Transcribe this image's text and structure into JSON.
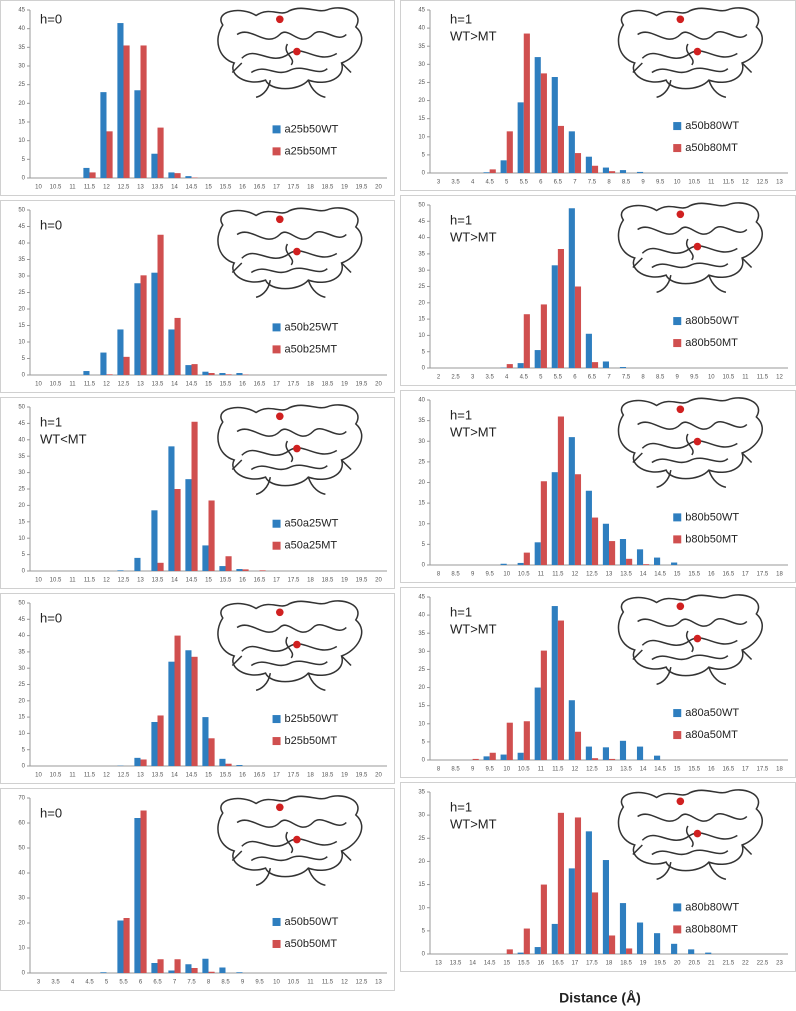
{
  "chart_data": [
    {
      "type": "bar",
      "annotations": [
        "h=0"
      ],
      "categories": [
        10,
        10.5,
        11,
        11.5,
        12,
        12.5,
        13,
        13.5,
        14,
        14.5,
        15,
        15.5,
        16,
        16.5,
        17,
        17.5,
        18,
        18.5,
        19,
        19.5,
        20
      ],
      "ylim": [
        0,
        45
      ],
      "yticks": [
        0,
        5,
        10,
        15,
        20,
        25,
        30,
        35,
        40,
        45
      ],
      "series": [
        {
          "name": "a25b50WT",
          "color": "#2e7ebf",
          "values": [
            0,
            0,
            0,
            2.7,
            23,
            41.5,
            23.5,
            6.5,
            1.5,
            0.5,
            0,
            0,
            0,
            0,
            0,
            0,
            0,
            0,
            0,
            0,
            0
          ]
        },
        {
          "name": "a25b50MT",
          "color": "#d04f4f",
          "values": [
            0,
            0,
            0,
            1.5,
            12.5,
            35.5,
            35.5,
            13.5,
            1.3,
            0.1,
            0,
            0,
            0,
            0,
            0,
            0,
            0,
            0,
            0,
            0,
            0
          ]
        }
      ]
    },
    {
      "type": "bar",
      "annotations": [
        "h=0"
      ],
      "categories": [
        10,
        10.5,
        11,
        11.5,
        12,
        12.5,
        13,
        13.5,
        14,
        14.5,
        15,
        15.5,
        16,
        16.5,
        17,
        17.5,
        18,
        18.5,
        19,
        19.5,
        20
      ],
      "ylim": [
        0,
        50
      ],
      "yticks": [
        0,
        5,
        10,
        15,
        20,
        25,
        30,
        35,
        40,
        45,
        50
      ],
      "series": [
        {
          "name": "a50b25WT",
          "color": "#2e7ebf",
          "values": [
            0,
            0,
            0,
            1.2,
            6.8,
            13.8,
            27.8,
            31,
            13.8,
            3,
            1,
            0.6,
            0.6,
            0,
            0,
            0,
            0,
            0,
            0,
            0,
            0
          ]
        },
        {
          "name": "a50b25MT",
          "color": "#d04f4f",
          "values": [
            0,
            0,
            0,
            0,
            0.2,
            5.5,
            30.2,
            42.5,
            17.3,
            3.3,
            0.6,
            0.2,
            0.1,
            0,
            0,
            0,
            0,
            0,
            0,
            0,
            0
          ]
        }
      ]
    },
    {
      "type": "bar",
      "annotations": [
        "h=1",
        "WT<MT"
      ],
      "categories": [
        10,
        10.5,
        11,
        11.5,
        12,
        12.5,
        13,
        13.5,
        14,
        14.5,
        15,
        15.5,
        16,
        16.5,
        17,
        17.5,
        18,
        18.5,
        19,
        19.5,
        20
      ],
      "ylim": [
        0,
        50
      ],
      "yticks": [
        0,
        5,
        10,
        15,
        20,
        25,
        30,
        35,
        40,
        45,
        50
      ],
      "series": [
        {
          "name": "a50a25WT",
          "color": "#2e7ebf",
          "values": [
            0,
            0,
            0,
            0,
            0,
            0.2,
            4,
            18.5,
            38,
            28,
            7.8,
            1.5,
            0.6,
            0,
            0,
            0,
            0,
            0,
            0,
            0,
            0
          ]
        },
        {
          "name": "a50a25MT",
          "color": "#d04f4f",
          "values": [
            0,
            0,
            0,
            0,
            0,
            0,
            0,
            2.5,
            25,
            45.5,
            21.5,
            4.5,
            0.5,
            0.2,
            0,
            0,
            0,
            0,
            0,
            0,
            0
          ]
        }
      ]
    },
    {
      "type": "bar",
      "annotations": [
        "h=0"
      ],
      "categories": [
        10,
        10.5,
        11,
        11.5,
        12,
        12.5,
        13,
        13.5,
        14,
        14.5,
        15,
        15.5,
        16,
        16.5,
        17,
        17.5,
        18,
        18.5,
        19,
        19.5,
        20
      ],
      "ylim": [
        0,
        50
      ],
      "yticks": [
        0,
        5,
        10,
        15,
        20,
        25,
        30,
        35,
        40,
        45,
        50
      ],
      "series": [
        {
          "name": "b25b50WT",
          "color": "#2e7ebf",
          "values": [
            0,
            0,
            0,
            0,
            0,
            0.1,
            2.5,
            13.5,
            32,
            35.5,
            15,
            2.2,
            0.3,
            0,
            0,
            0,
            0,
            0,
            0,
            0,
            0
          ]
        },
        {
          "name": "b25b50MT",
          "color": "#d04f4f",
          "values": [
            0,
            0,
            0,
            0,
            0,
            0,
            2,
            15.5,
            40,
            33.5,
            8.5,
            0.7,
            0,
            0,
            0,
            0,
            0,
            0,
            0,
            0,
            0
          ]
        }
      ]
    },
    {
      "type": "bar",
      "annotations": [
        "h=0"
      ],
      "categories": [
        3,
        3.5,
        4,
        4.5,
        5,
        5.5,
        6,
        6.5,
        7,
        7.5,
        8,
        8.5,
        9,
        9.5,
        10,
        10.5,
        11,
        11.5,
        12,
        12.5,
        13
      ],
      "ylim": [
        0,
        70
      ],
      "yticks": [
        0,
        10,
        20,
        30,
        40,
        50,
        60,
        70
      ],
      "series": [
        {
          "name": "a50b50WT",
          "color": "#2e7ebf",
          "values": [
            0,
            0,
            0,
            0,
            0.3,
            21,
            62,
            4,
            1,
            3.5,
            5.7,
            2.2,
            0.3,
            0,
            0,
            0,
            0,
            0,
            0,
            0,
            0
          ]
        },
        {
          "name": "a50b50MT",
          "color": "#d04f4f",
          "values": [
            0,
            0,
            0,
            0,
            0,
            22,
            65,
            5.5,
            5.5,
            2,
            0.5,
            0,
            0,
            0,
            0,
            0,
            0,
            0,
            0,
            0,
            0
          ]
        }
      ]
    },
    {
      "type": "bar",
      "annotations": [
        "h=1",
        "WT>MT"
      ],
      "categories": [
        3,
        3.5,
        4,
        4.5,
        5,
        5.5,
        6,
        6.5,
        7,
        7.5,
        8,
        8.5,
        9,
        9.5,
        10,
        10.5,
        11,
        11.5,
        12,
        12.5,
        13
      ],
      "ylim": [
        0,
        45
      ],
      "yticks": [
        0,
        5,
        10,
        15,
        20,
        25,
        30,
        35,
        40,
        45
      ],
      "series": [
        {
          "name": "a50b80WT",
          "color": "#2e7ebf",
          "values": [
            0,
            0,
            0,
            0.2,
            3.5,
            19.5,
            32,
            26.5,
            11.5,
            4.5,
            1.5,
            0.8,
            0.3,
            0,
            0,
            0,
            0,
            0,
            0,
            0,
            0
          ]
        },
        {
          "name": "a50b80MT",
          "color": "#d04f4f",
          "values": [
            0,
            0,
            0,
            1,
            11.5,
            38.5,
            27.5,
            13,
            5.5,
            2,
            0.5,
            0,
            0,
            0,
            0,
            0,
            0,
            0,
            0,
            0,
            0
          ]
        }
      ]
    },
    {
      "type": "bar",
      "annotations": [
        "h=1",
        "WT>MT"
      ],
      "categories": [
        2,
        2.5,
        3,
        3.5,
        4,
        4.5,
        5,
        5.5,
        6,
        6.5,
        7,
        7.5,
        8,
        8.5,
        9,
        9.5,
        10,
        10.5,
        11,
        11.5,
        12
      ],
      "ylim": [
        0,
        50
      ],
      "yticks": [
        0,
        5,
        10,
        15,
        20,
        25,
        30,
        35,
        40,
        45,
        50
      ],
      "series": [
        {
          "name": "a80b50WT",
          "color": "#2e7ebf",
          "values": [
            0,
            0,
            0,
            0,
            0.1,
            1.5,
            5.5,
            31.5,
            49,
            10.5,
            2,
            0.3,
            0,
            0,
            0,
            0,
            0,
            0,
            0,
            0,
            0
          ]
        },
        {
          "name": "a80b50MT",
          "color": "#d04f4f",
          "values": [
            0,
            0,
            0,
            0,
            1.2,
            16.5,
            19.5,
            36.5,
            25,
            1.8,
            0,
            0,
            0,
            0,
            0,
            0,
            0,
            0,
            0,
            0,
            0
          ]
        }
      ]
    },
    {
      "type": "bar",
      "annotations": [
        "h=1",
        "WT>MT"
      ],
      "categories": [
        8,
        8.5,
        9,
        9.5,
        10,
        10.5,
        11,
        11.5,
        12,
        12.5,
        13,
        13.5,
        14,
        14.5,
        15,
        15.5,
        16,
        16.5,
        17,
        17.5,
        18
      ],
      "ylim": [
        0,
        40
      ],
      "yticks": [
        0,
        5,
        10,
        15,
        20,
        25,
        30,
        35,
        40
      ],
      "series": [
        {
          "name": "b80b50WT",
          "color": "#2e7ebf",
          "values": [
            0,
            0,
            0,
            0,
            0.3,
            0.5,
            5.5,
            22.5,
            31,
            18,
            10,
            6.3,
            3.8,
            1.8,
            0.6,
            0,
            0,
            0,
            0,
            0,
            0
          ]
        },
        {
          "name": "b80b50MT",
          "color": "#d04f4f",
          "values": [
            0,
            0,
            0,
            0,
            0,
            3,
            20.3,
            36,
            22,
            11.5,
            5.8,
            1.5,
            0.2,
            0,
            0,
            0,
            0,
            0,
            0,
            0,
            0
          ]
        }
      ]
    },
    {
      "type": "bar",
      "annotations": [
        "h=1",
        "WT>MT"
      ],
      "categories": [
        8,
        8.5,
        9,
        9.5,
        10,
        10.5,
        11,
        11.5,
        12,
        12.5,
        13,
        13.5,
        14,
        14.5,
        15,
        15.5,
        16,
        16.5,
        17,
        17.5,
        18
      ],
      "ylim": [
        0,
        45
      ],
      "yticks": [
        0,
        5,
        10,
        15,
        20,
        25,
        30,
        35,
        40,
        45
      ],
      "series": [
        {
          "name": "a80a50WT",
          "color": "#2e7ebf",
          "values": [
            0,
            0,
            0,
            1,
            1.5,
            2,
            20,
            42.5,
            16.5,
            3.7,
            3.5,
            5.3,
            3.7,
            1.2,
            0,
            0,
            0,
            0,
            0,
            0,
            0
          ]
        },
        {
          "name": "a80a50MT",
          "color": "#d04f4f",
          "values": [
            0,
            0,
            0.3,
            2,
            10.3,
            10.7,
            30.2,
            38.5,
            7.8,
            0.5,
            0.3,
            0,
            0,
            0,
            0,
            0,
            0,
            0,
            0,
            0,
            0
          ]
        }
      ]
    },
    {
      "type": "bar",
      "annotations": [
        "h=1",
        "WT>MT"
      ],
      "categories": [
        13,
        13.5,
        14,
        14.5,
        15,
        15.5,
        16,
        16.5,
        17,
        17.5,
        18,
        18.5,
        19,
        19.5,
        20,
        20.5,
        21,
        21.5,
        22,
        22.5,
        23
      ],
      "ylim": [
        0,
        35
      ],
      "yticks": [
        0,
        5,
        10,
        15,
        20,
        25,
        30,
        35
      ],
      "series": [
        {
          "name": "a80b80WT",
          "color": "#2e7ebf",
          "values": [
            0,
            0,
            0,
            0,
            0,
            0.3,
            1.5,
            6.5,
            18.5,
            26.5,
            20.3,
            11,
            6.8,
            4.5,
            2.2,
            1,
            0.3,
            0,
            0,
            0,
            0
          ]
        },
        {
          "name": "a80b80MT",
          "color": "#d04f4f",
          "values": [
            0,
            0,
            0,
            0,
            1,
            5.5,
            15,
            30.5,
            29.5,
            13.3,
            4,
            1.2,
            0,
            0,
            0,
            0,
            0,
            0,
            0,
            0,
            0
          ]
        }
      ]
    }
  ],
  "xlabel": "Distance (Å)"
}
